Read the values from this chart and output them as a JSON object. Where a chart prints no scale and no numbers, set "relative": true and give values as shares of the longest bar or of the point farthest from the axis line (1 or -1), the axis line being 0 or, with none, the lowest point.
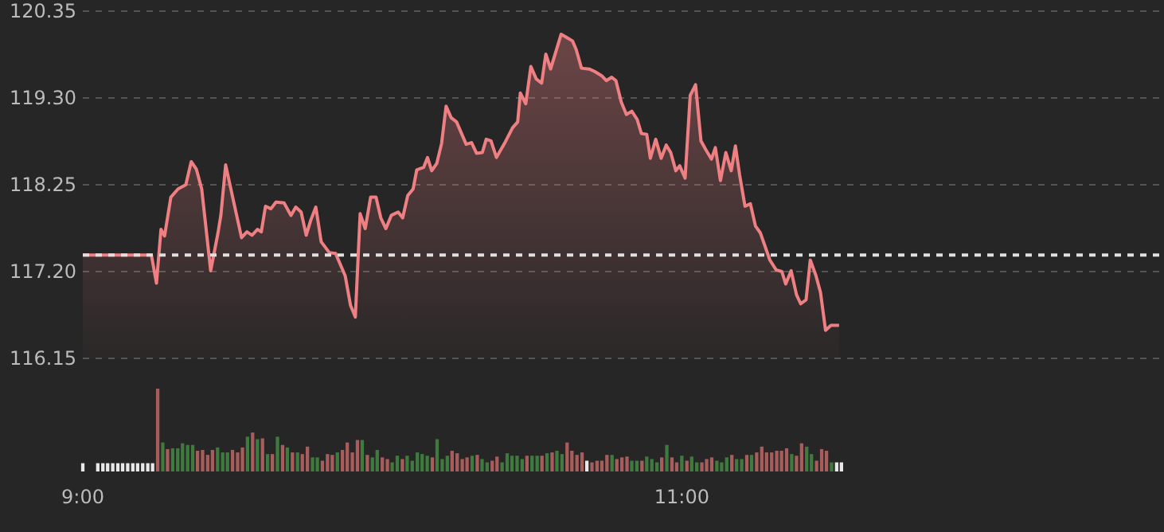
{
  "chart_data": [
    {
      "type": "area",
      "color": "#ee7f82",
      "xlim": [
        9,
        12.61
      ],
      "ylim": [
        116.15,
        120.35
      ],
      "grid": "y",
      "line_style": "solid",
      "marker": "none",
      "tick_labels": "y",
      "yticks": [
        116.15,
        {
          "value": 117.2,
          "label": "117.20"
        },
        118.25,
        {
          "value": 119.3,
          "label": "119.30"
        },
        120.35
      ],
      "ref_lines": [
        {
          "axis": "y",
          "value": 117.4,
          "color": "#e0e0e0",
          "line_style": "dashed"
        }
      ],
      "x": [
        9,
        9.229,
        9.246,
        9.261,
        9.273,
        9.294,
        9.318,
        9.344,
        9.362,
        9.379,
        9.397,
        9.427,
        9.451,
        9.461,
        9.477,
        9.504,
        9.53,
        9.548,
        9.565,
        9.583,
        9.596,
        9.61,
        9.628,
        9.645,
        9.672,
        9.695,
        9.711,
        9.729,
        9.746,
        9.761,
        9.778,
        9.796,
        9.823,
        9.844,
        9.876,
        9.894,
        9.91,
        9.926,
        9.943,
        9.961,
        9.979,
        9.995,
        10.012,
        10.03,
        10.053,
        10.068,
        10.085,
        10.103,
        10.115,
        10.138,
        10.151,
        10.165,
        10.182,
        10.198,
        10.213,
        10.23,
        10.248,
        10.28,
        10.298,
        10.315,
        10.334,
        10.347,
        10.363,
        10.381,
        10.408,
        10.435,
        10.452,
        10.461,
        10.479,
        10.496,
        10.514,
        10.532,
        10.546,
        10.562,
        10.597,
        10.612,
        10.635,
        10.647,
        10.665,
        10.691,
        10.709,
        10.732,
        10.748,
        10.766,
        10.78,
        10.798,
        10.815,
        10.833,
        10.851,
        10.865,
        10.883,
        10.895,
        10.913,
        10.931,
        10.948,
        10.963,
        10.98,
        10.993,
        11.011,
        11.028,
        11.046,
        11.064,
        11.081,
        11.099,
        11.112,
        11.129,
        11.147,
        11.165,
        11.179,
        11.193,
        11.211,
        11.229,
        11.246,
        11.262,
        11.294,
        11.315,
        11.334,
        11.347,
        11.365,
        11.383,
        11.397,
        11.415,
        11.429,
        11.448,
        11.463,
        11.48,
        11.498,
        11.525
      ],
      "values": [
        117.4,
        117.4,
        117.06,
        117.71,
        117.63,
        118.1,
        118.2,
        118.25,
        118.53,
        118.44,
        118.2,
        117.21,
        117.66,
        117.88,
        118.49,
        118.04,
        117.61,
        117.68,
        117.64,
        117.71,
        117.68,
        117.99,
        117.96,
        118.04,
        118.03,
        117.88,
        117.98,
        117.92,
        117.64,
        117.82,
        117.98,
        117.56,
        117.43,
        117.42,
        117.15,
        116.79,
        116.65,
        117.9,
        117.72,
        118.1,
        118.1,
        117.85,
        117.72,
        117.88,
        117.92,
        117.85,
        118.12,
        118.2,
        118.43,
        118.46,
        118.58,
        118.42,
        118.51,
        118.75,
        119.2,
        119.06,
        119.01,
        118.74,
        118.76,
        118.63,
        118.64,
        118.8,
        118.78,
        118.58,
        118.75,
        118.94,
        119.01,
        119.36,
        119.23,
        119.68,
        119.53,
        119.48,
        119.83,
        119.65,
        120.07,
        120.04,
        119.99,
        119.89,
        119.66,
        119.65,
        119.62,
        119.57,
        119.51,
        119.55,
        119.51,
        119.25,
        119.1,
        119.14,
        119.04,
        118.87,
        118.86,
        118.57,
        118.8,
        118.57,
        118.73,
        118.64,
        118.42,
        118.48,
        118.33,
        119.33,
        119.46,
        118.78,
        118.67,
        118.56,
        118.7,
        118.3,
        118.64,
        118.42,
        118.72,
        118.37,
        117.99,
        118.02,
        117.75,
        117.67,
        117.34,
        117.22,
        117.2,
        117.05,
        117.21,
        116.92,
        116.81,
        116.86,
        117.34,
        117.15,
        116.95,
        116.49,
        116.55,
        116.55
      ]
    },
    {
      "type": "bar",
      "relative": true,
      "tick_labels": "x",
      "xlim": [
        9,
        12.61
      ],
      "xticks": [
        {
          "value": 9,
          "label": "9:00"
        },
        {
          "value": 11,
          "label": "11:00"
        }
      ],
      "x": [
        9,
        9.05,
        9.067,
        9.083,
        9.1,
        9.117,
        9.133,
        9.15,
        9.167,
        9.183,
        9.2,
        9.217,
        9.233,
        9.25,
        9.267,
        9.283,
        9.3,
        9.317,
        9.333,
        9.35,
        9.367,
        9.383,
        9.4,
        9.417,
        9.433,
        9.45,
        9.467,
        9.483,
        9.5,
        9.517,
        9.533,
        9.55,
        9.567,
        9.583,
        9.6,
        9.617,
        9.633,
        9.65,
        9.667,
        9.683,
        9.7,
        9.717,
        9.733,
        9.75,
        9.767,
        9.783,
        9.8,
        9.817,
        9.833,
        9.85,
        9.867,
        9.883,
        9.9,
        9.917,
        9.933,
        9.95,
        9.967,
        9.983,
        10,
        10.017,
        10.033,
        10.05,
        10.067,
        10.083,
        10.1,
        10.117,
        10.133,
        10.15,
        10.167,
        10.183,
        10.2,
        10.217,
        10.233,
        10.25,
        10.267,
        10.283,
        10.3,
        10.317,
        10.333,
        10.35,
        10.367,
        10.383,
        10.4,
        10.417,
        10.433,
        10.45,
        10.467,
        10.483,
        10.5,
        10.517,
        10.533,
        10.55,
        10.567,
        10.583,
        10.6,
        10.617,
        10.633,
        10.65,
        10.667,
        10.683,
        10.7,
        10.717,
        10.733,
        10.75,
        10.767,
        10.783,
        10.8,
        10.817,
        10.833,
        10.85,
        10.867,
        10.883,
        10.9,
        10.917,
        10.933,
        10.95,
        10.967,
        10.983,
        11,
        11.017,
        11.033,
        11.05,
        11.067,
        11.083,
        11.1,
        11.117,
        11.133,
        11.15,
        11.167,
        11.183,
        11.2,
        11.217,
        11.233,
        11.25,
        11.267,
        11.283,
        11.3,
        11.317,
        11.333,
        11.35,
        11.367,
        11.383,
        11.4,
        11.417,
        11.433,
        11.45,
        11.467,
        11.483,
        11.5,
        11.517,
        11.533
      ],
      "values": [
        0.1,
        0.1,
        0.1,
        0.1,
        0.1,
        0.1,
        0.1,
        0.1,
        0.1,
        0.1,
        0.1,
        0.1,
        0.1,
        1,
        0.35,
        0.27,
        0.28,
        0.28,
        0.34,
        0.32,
        0.32,
        0.25,
        0.26,
        0.2,
        0.26,
        0.29,
        0.23,
        0.23,
        0.26,
        0.23,
        0.29,
        0.42,
        0.47,
        0.39,
        0.4,
        0.21,
        0.21,
        0.42,
        0.32,
        0.29,
        0.23,
        0.23,
        0.21,
        0.3,
        0.17,
        0.17,
        0.13,
        0.21,
        0.2,
        0.23,
        0.26,
        0.35,
        0.23,
        0.38,
        0.38,
        0.2,
        0.17,
        0.26,
        0.17,
        0.15,
        0.11,
        0.19,
        0.15,
        0.19,
        0.13,
        0.23,
        0.21,
        0.19,
        0.17,
        0.39,
        0.15,
        0.19,
        0.25,
        0.22,
        0.15,
        0.17,
        0.19,
        0.2,
        0.15,
        0.11,
        0.13,
        0.18,
        0.11,
        0.22,
        0.19,
        0.19,
        0.15,
        0.19,
        0.19,
        0.19,
        0.19,
        0.22,
        0.23,
        0.25,
        0.21,
        0.35,
        0.25,
        0.2,
        0.23,
        0.13,
        0.11,
        0.13,
        0.13,
        0.2,
        0.2,
        0.15,
        0.17,
        0.18,
        0.13,
        0.13,
        0.13,
        0.18,
        0.15,
        0.11,
        0.17,
        0.32,
        0.17,
        0.11,
        0.19,
        0.13,
        0.18,
        0.11,
        0.11,
        0.15,
        0.17,
        0.13,
        0.11,
        0.17,
        0.2,
        0.15,
        0.15,
        0.2,
        0.2,
        0.23,
        0.3,
        0.23,
        0.23,
        0.25,
        0.25,
        0.28,
        0.21,
        0.19,
        0.34,
        0.3,
        0.21,
        0.13,
        0.27,
        0.25,
        0.11,
        0.11,
        0.11
      ],
      "colors": [
        "#e8e8e8",
        "#e8e8e8",
        "#e8e8e8",
        "#e8e8e8",
        "#e8e8e8",
        "#e8e8e8",
        "#e8e8e8",
        "#e8e8e8",
        "#e8e8e8",
        "#e8e8e8",
        "#e8e8e8",
        "#e8e8e8",
        "#e8e8e8",
        "#a85c5c",
        "#3f7a3f",
        "#a85c5c",
        "#3f7a3f",
        "#3f7a3f",
        "#3f7a3f",
        "#3f7a3f",
        "#3f7a3f",
        "#a85c5c",
        "#a85c5c",
        "#a85c5c",
        "#a85c5c",
        "#3f7a3f",
        "#3f7a3f",
        "#3f7a3f",
        "#a85c5c",
        "#a85c5c",
        "#a85c5c",
        "#3f7a3f",
        "#a85c5c",
        "#3f7a3f",
        "#a85c5c",
        "#3f7a3f",
        "#a85c5c",
        "#3f7a3f",
        "#a85c5c",
        "#3f7a3f",
        "#a85c5c",
        "#3f7a3f",
        "#a85c5c",
        "#a85c5c",
        "#3f7a3f",
        "#3f7a3f",
        "#a85c5c",
        "#a85c5c",
        "#a85c5c",
        "#3f7a3f",
        "#a85c5c",
        "#a85c5c",
        "#a85c5c",
        "#a85c5c",
        "#3f7a3f",
        "#a85c5c",
        "#3f7a3f",
        "#3f7a3f",
        "#a85c5c",
        "#a85c5c",
        "#3f7a3f",
        "#3f7a3f",
        "#a85c5c",
        "#3f7a3f",
        "#3f7a3f",
        "#3f7a3f",
        "#3f7a3f",
        "#3f7a3f",
        "#a85c5c",
        "#3f7a3f",
        "#3f7a3f",
        "#3f7a3f",
        "#a85c5c",
        "#a85c5c",
        "#a85c5c",
        "#a85c5c",
        "#3f7a3f",
        "#a85c5c",
        "#3f7a3f",
        "#3f7a3f",
        "#a85c5c",
        "#a85c5c",
        "#3f7a3f",
        "#3f7a3f",
        "#3f7a3f",
        "#3f7a3f",
        "#3f7a3f",
        "#a85c5c",
        "#3f7a3f",
        "#3f7a3f",
        "#a85c5c",
        "#3f7a3f",
        "#a85c5c",
        "#3f7a3f",
        "#3f7a3f",
        "#a85c5c",
        "#a85c5c",
        "#a85c5c",
        "#a85c5c",
        "#e8e8e8",
        "#a85c5c",
        "#a85c5c",
        "#a85c5c",
        "#a85c5c",
        "#3f7a3f",
        "#a85c5c",
        "#a85c5c",
        "#a85c5c",
        "#3f7a3f",
        "#3f7a3f",
        "#a85c5c",
        "#3f7a3f",
        "#3f7a3f",
        "#3f7a3f",
        "#a85c5c",
        "#3f7a3f",
        "#a85c5c",
        "#a85c5c",
        "#3f7a3f",
        "#a85c5c",
        "#3f7a3f",
        "#3f7a3f",
        "#a85c5c",
        "#a85c5c",
        "#a85c5c",
        "#3f7a3f",
        "#3f7a3f",
        "#3f7a3f",
        "#a85c5c",
        "#3f7a3f",
        "#3f7a3f",
        "#a85c5c",
        "#3f7a3f",
        "#a85c5c",
        "#a85c5c",
        "#a85c5c",
        "#a85c5c",
        "#a85c5c",
        "#a85c5c",
        "#a85c5c",
        "#3f7a3f",
        "#a85c5c",
        "#a85c5c",
        "#3f7a3f",
        "#3f7a3f",
        "#a85c5c",
        "#a85c5c",
        "#a85c5c",
        "#3f7a3f",
        "#e8e8e8",
        "#e8e8e8"
      ]
    }
  ]
}
